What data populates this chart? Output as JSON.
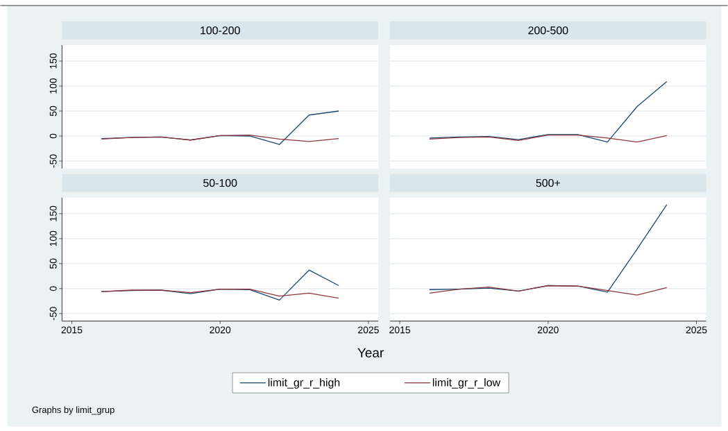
{
  "chart_data": [
    {
      "type": "line",
      "title": "100-200",
      "x": [
        2016,
        2017,
        2018,
        2019,
        2020,
        2021,
        2022,
        2023,
        2024
      ],
      "series": [
        {
          "color": "#1a476f",
          "values": [
            -5,
            -3,
            -2,
            -8,
            1,
            0,
            -17,
            42,
            50
          ]
        },
        {
          "color": "#90353b",
          "values": [
            -6,
            -3,
            -2,
            -8,
            1,
            2,
            -6,
            -11,
            -5
          ]
        }
      ],
      "xlim": [
        2014.67,
        2025.33
      ],
      "ylim": [
        -65,
        182
      ],
      "xticks": [
        2015,
        2020,
        2025
      ],
      "yticks": [
        -50,
        0,
        50,
        100,
        150
      ],
      "grid": "y",
      "tick_labels": "y"
    },
    {
      "type": "line",
      "title": "200-500",
      "x": [
        2016,
        2017,
        2018,
        2019,
        2020,
        2021,
        2022,
        2023,
        2024
      ],
      "series": [
        {
          "color": "#1a476f",
          "values": [
            -4,
            -2,
            -1,
            -7,
            3,
            3,
            -12,
            59,
            109
          ]
        },
        {
          "color": "#90353b",
          "values": [
            -6,
            -3,
            -2,
            -9,
            2,
            2,
            -4,
            -12,
            1
          ]
        }
      ],
      "xlim": [
        2014.67,
        2025.33
      ],
      "ylim": [
        -65,
        182
      ],
      "xticks": [
        2015,
        2020,
        2025
      ],
      "yticks": [
        -50,
        0,
        50,
        100,
        150
      ],
      "grid": "y",
      "tick_labels": false
    },
    {
      "type": "line",
      "title": "50-100",
      "xlabel": "Year",
      "x": [
        2016,
        2017,
        2018,
        2019,
        2020,
        2021,
        2022,
        2023,
        2024
      ],
      "series": [
        {
          "name": "limit_gr_r_high",
          "color": "#1a476f",
          "values": [
            -6,
            -4,
            -3,
            -10,
            -1,
            -2,
            -23,
            37,
            6
          ]
        },
        {
          "name": "limit_gr_r_low",
          "color": "#90353b",
          "values": [
            -6,
            -3,
            -3,
            -8,
            -1,
            -1,
            -15,
            -9,
            -19
          ]
        }
      ],
      "xlim": [
        2014.67,
        2025.33
      ],
      "ylim": [
        -65,
        182
      ],
      "xticks": [
        2015,
        2020,
        2025
      ],
      "yticks": [
        -50,
        0,
        50,
        100,
        150
      ],
      "grid": "y",
      "legend": "bottom",
      "annotations": [
        "Graphs by limit_grup"
      ]
    },
    {
      "type": "line",
      "title": "500+",
      "x": [
        2016,
        2017,
        2018,
        2019,
        2020,
        2021,
        2022,
        2023,
        2024
      ],
      "series": [
        {
          "color": "#1a476f",
          "values": [
            -2,
            -1,
            1,
            -5,
            6,
            5,
            -7,
            79,
            168
          ]
        },
        {
          "color": "#90353b",
          "values": [
            -9,
            -1,
            3,
            -5,
            6,
            5,
            -4,
            -13,
            2
          ]
        }
      ],
      "xlim": [
        2014.67,
        2025.33
      ],
      "ylim": [
        -65,
        182
      ],
      "xticks": [
        2015,
        2020,
        2025
      ],
      "yticks": [
        -50,
        0,
        50,
        100,
        150
      ],
      "grid": "y",
      "tick_labels": "x"
    }
  ]
}
